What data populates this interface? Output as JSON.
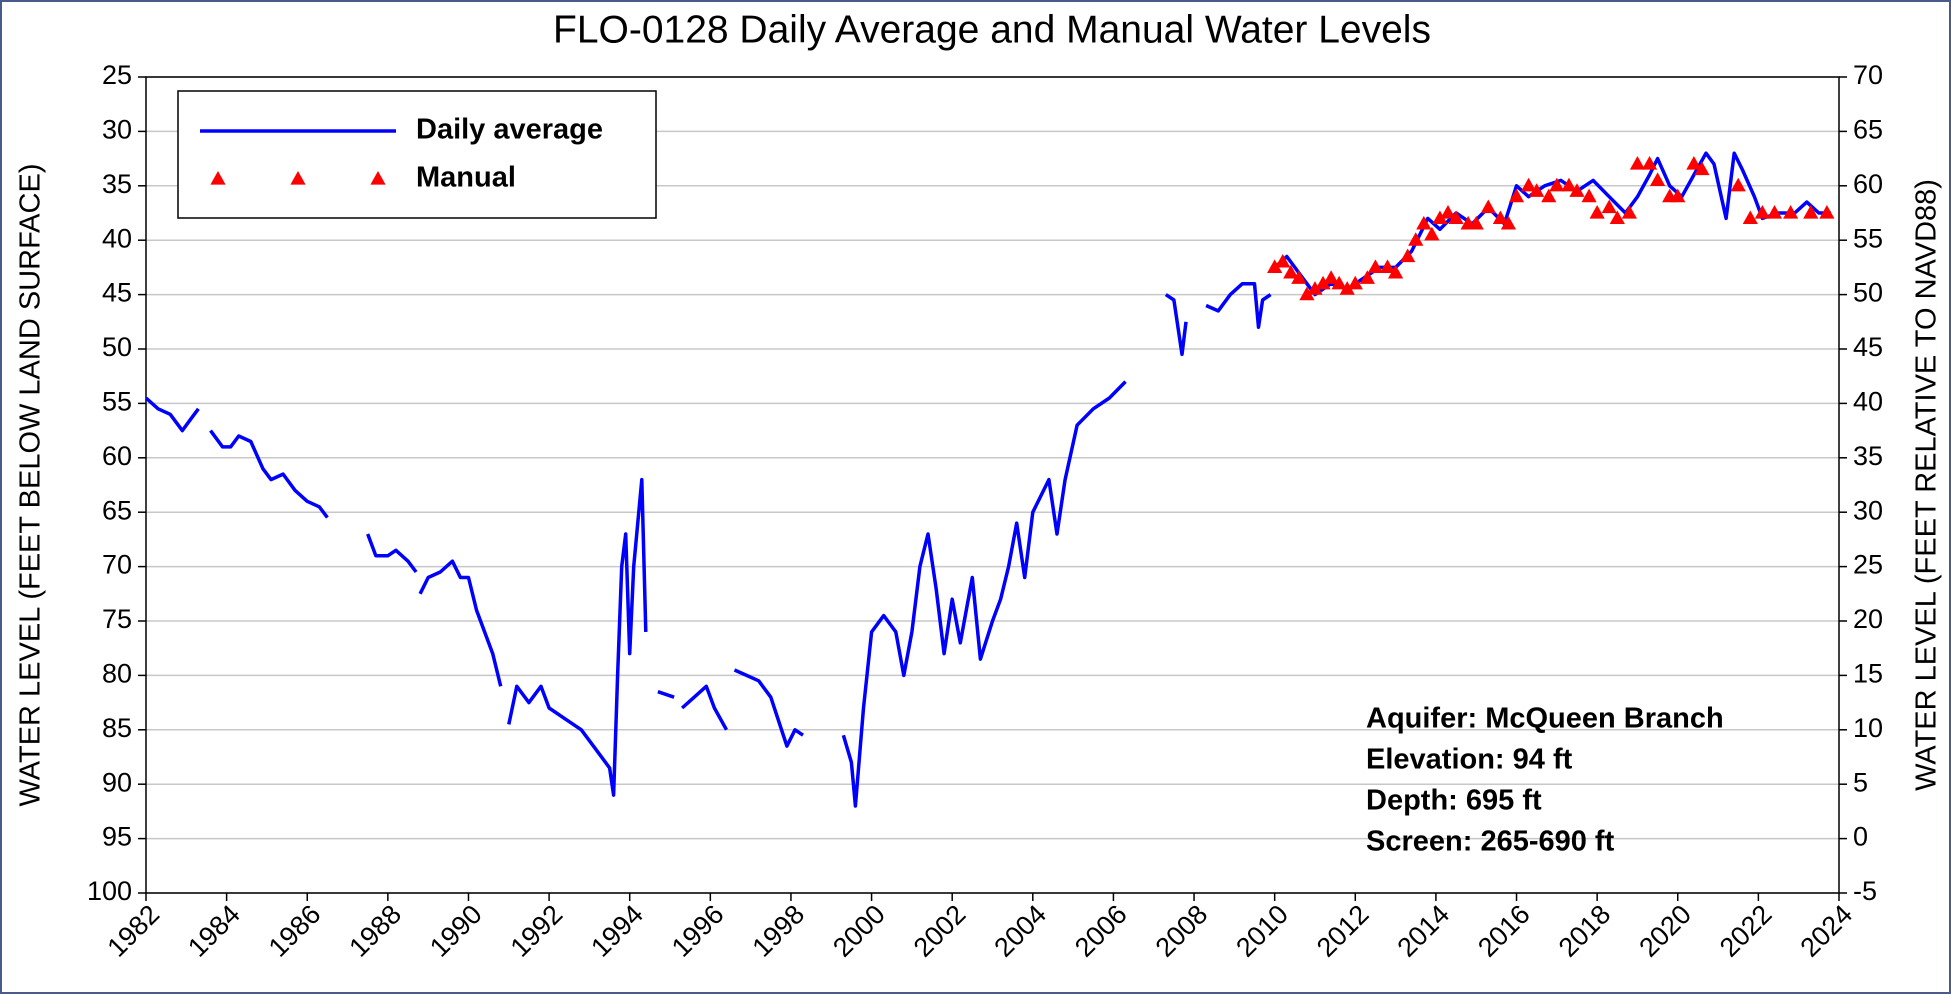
{
  "chart_data": {
    "type": "line",
    "title": "FLO-0128 Daily Average and Manual Water Levels",
    "ylabel": "WATER LEVEL (FEET BELOW LAND SURFACE)",
    "y2label": "WATER LEVEL (FEET RELATIVE TO NAVD88)",
    "xlim": [
      1982,
      2024
    ],
    "xticks": [
      1982,
      1984,
      1986,
      1988,
      1990,
      1992,
      1994,
      1996,
      1998,
      2000,
      2002,
      2004,
      2006,
      2008,
      2010,
      2012,
      2014,
      2016,
      2018,
      2020,
      2022,
      2024
    ],
    "ylim": [
      100,
      25
    ],
    "yticks": [
      25,
      30,
      35,
      40,
      45,
      50,
      55,
      60,
      65,
      70,
      75,
      80,
      85,
      90,
      95,
      100
    ],
    "y2lim": [
      -5,
      70
    ],
    "y2ticks": [
      -5,
      0,
      5,
      10,
      15,
      20,
      25,
      30,
      35,
      40,
      45,
      50,
      55,
      60,
      65,
      70
    ],
    "grid": true,
    "legend": "upper left",
    "annotations": [
      "Aquifer: McQueen Branch",
      "Elevation: 94 ft",
      "Depth: 695 ft",
      "Screen: 265-690 ft"
    ],
    "series": [
      {
        "name": "Daily average",
        "color": "#0000ff",
        "marker": "line",
        "x": [
          1982.0,
          1982.3,
          1982.6,
          1982.9,
          1983.1,
          1983.3,
          null,
          1983.6,
          1983.9,
          1984.1,
          1984.3,
          1984.6,
          1984.9,
          1985.1,
          1985.4,
          1985.7,
          1986.0,
          1986.3,
          1986.5,
          null,
          1987.5,
          1987.7,
          1988.0,
          1988.2,
          1988.5,
          1988.7,
          null,
          1988.8,
          1989.0,
          1989.3,
          1989.6,
          1989.8,
          1990.0,
          1990.2,
          1990.4,
          1990.6,
          1990.8,
          null,
          1991.0,
          1991.2,
          1991.5,
          1991.8,
          1992.0,
          1992.4,
          1992.8,
          1993.2,
          1993.5,
          1993.6,
          1993.7,
          1993.8,
          1993.9,
          1994.0,
          1994.1,
          1994.3,
          1994.4,
          null,
          1994.7,
          1995.1,
          null,
          1995.3,
          1995.6,
          1995.9,
          1996.1,
          1996.4,
          null,
          1996.6,
          1996.9,
          1997.2,
          1997.5,
          1997.9,
          1998.1,
          1998.3,
          null,
          1999.3,
          1999.5,
          1999.6,
          1999.8,
          2000.0,
          2000.3,
          2000.6,
          2000.8,
          2001.0,
          2001.2,
          2001.4,
          2001.6,
          2001.8,
          2002.0,
          2002.2,
          2002.5,
          2002.7,
          2003.0,
          2003.2,
          2003.4,
          2003.6,
          2003.8,
          2004.0,
          2004.4,
          2004.6,
          2004.8,
          2005.1,
          2005.5,
          2005.9,
          2006.3,
          null,
          2007.3,
          2007.5,
          2007.7,
          2007.8,
          null,
          2008.3,
          2008.6,
          2008.9,
          2009.2,
          2009.5,
          2009.6,
          2009.7,
          2009.9,
          null,
          2010.0,
          2010.3,
          2010.7,
          2011.0,
          2011.4,
          2011.8,
          2012.2,
          2012.6,
          2013.0,
          2013.4,
          2013.8,
          2014.1,
          2014.5,
          2014.9,
          2015.3,
          2015.7,
          2016.0,
          2016.3,
          2016.7,
          2017.1,
          2017.5,
          2017.9,
          2018.3,
          2018.7,
          2019.0,
          2019.3,
          2019.5,
          2019.8,
          2020.1,
          2020.4,
          2020.7,
          2020.9,
          2021.2,
          2021.4,
          2021.6,
          2021.9,
          2022.1,
          2022.5,
          2022.9,
          2023.2,
          2023.5,
          2023.8
        ],
        "values": [
          54.5,
          55.5,
          56,
          57.5,
          56.5,
          55.5,
          null,
          57.5,
          59,
          59,
          58,
          58.5,
          61,
          62,
          61.5,
          63,
          64,
          64.5,
          65.5,
          null,
          67,
          69,
          69,
          68.5,
          69.5,
          70.5,
          null,
          72.5,
          71,
          70.5,
          69.5,
          71,
          71,
          74,
          76,
          78,
          81,
          null,
          84.5,
          81,
          82.5,
          81,
          83,
          84,
          85,
          87,
          88.5,
          91,
          80,
          70,
          67,
          78,
          70,
          62,
          76,
          null,
          81.5,
          82,
          null,
          83,
          82,
          81,
          83,
          85,
          null,
          79.5,
          80,
          80.5,
          82,
          86.5,
          85,
          85.5,
          null,
          85.5,
          88,
          92,
          83,
          76,
          74.5,
          76,
          80,
          76,
          70,
          67,
          72,
          78,
          73,
          77,
          71,
          78.5,
          75,
          73,
          70,
          66,
          71,
          65,
          62,
          67,
          62,
          57,
          55.5,
          54.5,
          53,
          null,
          45,
          45.5,
          50.5,
          47.5,
          null,
          46,
          46.5,
          45,
          44,
          44,
          48,
          45.5,
          45,
          null,
          42.5,
          41.5,
          43.5,
          45,
          44,
          44.5,
          43.5,
          42.5,
          42.5,
          41,
          38,
          39,
          37.5,
          38.5,
          37,
          38.5,
          35,
          36,
          35,
          34.5,
          35.5,
          34.5,
          36,
          37.5,
          36,
          34,
          32.5,
          35,
          36,
          34,
          32,
          33,
          38,
          32,
          33.5,
          36,
          38,
          37.5,
          37.5,
          36.5,
          37.5,
          37.5
        ]
      },
      {
        "name": "Manual",
        "color": "#ff0000",
        "marker": "triangle",
        "x": [
          2010.0,
          2010.2,
          2010.4,
          2010.6,
          2010.8,
          2011.0,
          2011.2,
          2011.4,
          2011.6,
          2011.8,
          2012.0,
          2012.3,
          2012.5,
          2012.8,
          2013.0,
          2013.3,
          2013.5,
          2013.7,
          2013.9,
          2014.1,
          2014.3,
          2014.5,
          2014.8,
          2015.0,
          2015.3,
          2015.6,
          2015.8,
          2016.0,
          2016.3,
          2016.5,
          2016.8,
          2017.0,
          2017.3,
          2017.5,
          2017.8,
          2018.0,
          2018.3,
          2018.5,
          2018.8,
          2019.0,
          2019.3,
          2019.5,
          2019.8,
          2020.0,
          2020.4,
          2020.6,
          2021.5,
          2021.8,
          2022.1,
          2022.4,
          2022.8,
          2023.3,
          2023.7
        ],
        "values": [
          42.5,
          42,
          43,
          43.5,
          45,
          44.5,
          44,
          43.5,
          44,
          44.5,
          44,
          43.5,
          42.5,
          42.5,
          43,
          41.5,
          40,
          38.5,
          39.5,
          38,
          37.5,
          38,
          38.5,
          38.5,
          37,
          38,
          38.5,
          36,
          35,
          35.5,
          36,
          35,
          35,
          35.5,
          36,
          37.5,
          37,
          38,
          37.5,
          33,
          33,
          34.5,
          36,
          36,
          33,
          33.5,
          35,
          38,
          37.5,
          37.5,
          37.5,
          37.5,
          37.5
        ]
      }
    ]
  }
}
